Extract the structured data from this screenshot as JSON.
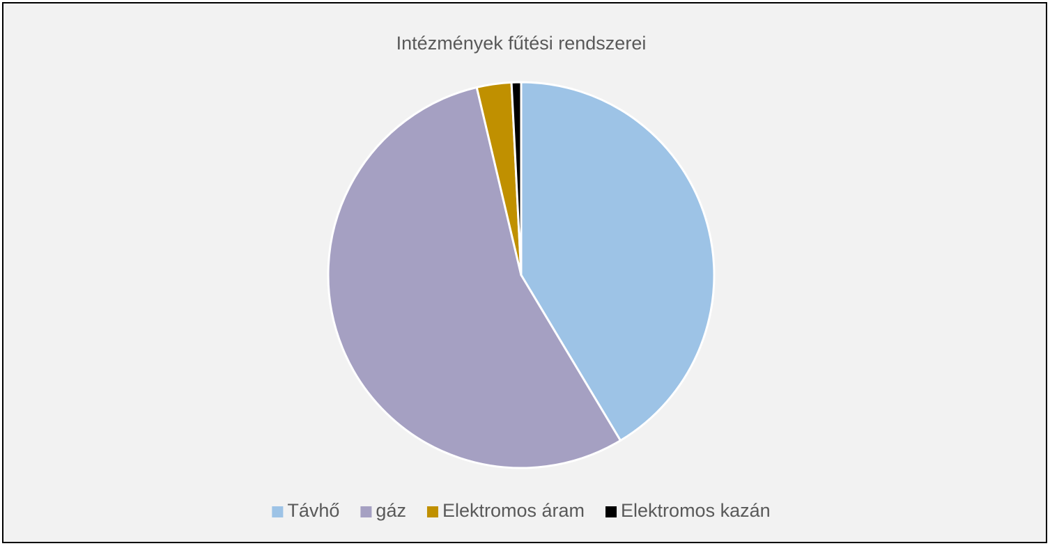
{
  "chart_data": {
    "type": "pie",
    "title": "Intézmények fűtési rendszerei",
    "categories": [
      "Távhő",
      "gáz",
      "Elektromos áram",
      "Elektromos kazán"
    ],
    "values": [
      41.4,
      54.9,
      2.9,
      0.8
    ],
    "colors": [
      "#9dc3e6",
      "#a5a0c2",
      "#c09000",
      "#000000"
    ],
    "legend": "bottom"
  }
}
